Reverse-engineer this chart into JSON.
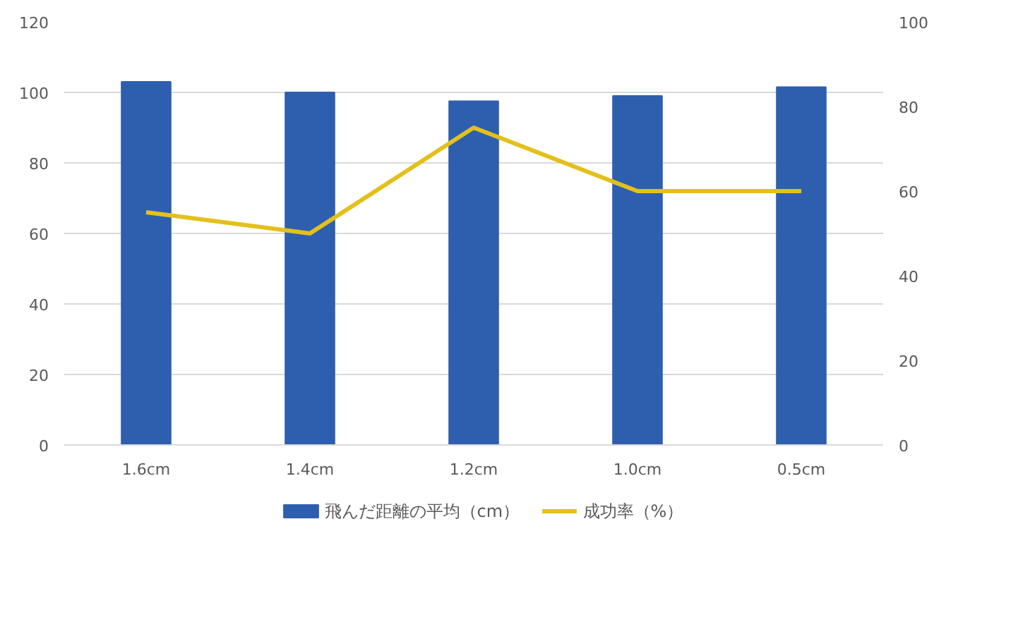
{
  "chart_data": {
    "type": "bar",
    "categories": [
      "1.6cm",
      "1.4cm",
      "1.2cm",
      "1.0cm",
      "0.5cm"
    ],
    "series": [
      {
        "name": "飛んだ距離の平均（cm）",
        "color": "#2e5fae",
        "values": [
          103,
          100,
          97.5,
          99,
          101.5
        ]
      },
      {
        "name": "成功率（%）",
        "color": "#e3c01c",
        "type": "line",
        "axis": "y2",
        "values": [
          55,
          50,
          75,
          60,
          60
        ]
      }
    ],
    "ylim": [
      0,
      120
    ],
    "yticks": [
      0,
      20,
      40,
      60,
      80,
      100,
      120
    ],
    "y2lim": [
      0,
      100
    ],
    "y2ticks": [
      0,
      20,
      40,
      60,
      80,
      100
    ],
    "grid": "y",
    "legend": "bottom"
  }
}
